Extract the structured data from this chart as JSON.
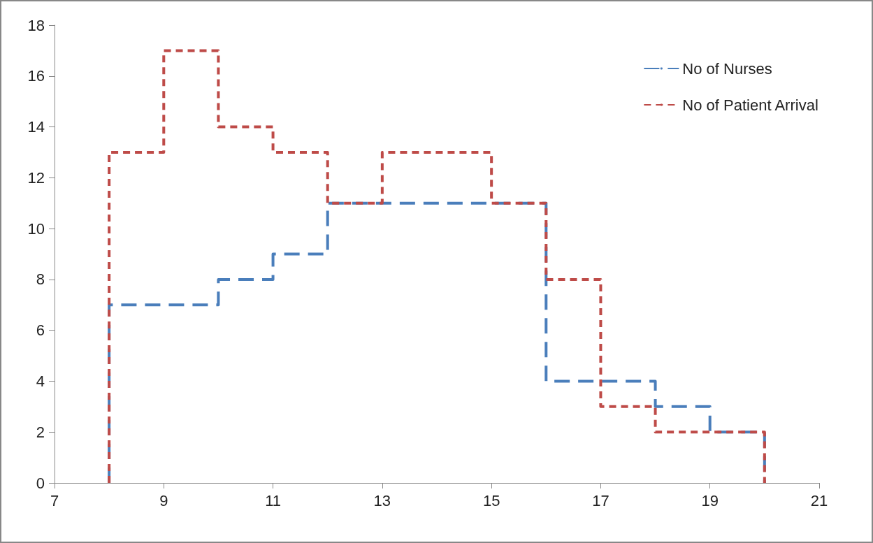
{
  "chart_data": {
    "type": "step",
    "xlim": [
      7,
      21
    ],
    "xticks": [
      7,
      9,
      11,
      13,
      15,
      17,
      19,
      21
    ],
    "ylim": [
      0,
      18
    ],
    "yticks": [
      0,
      2,
      4,
      6,
      8,
      10,
      12,
      14,
      16,
      18
    ],
    "grid": false,
    "legend": "top right",
    "marker": "none",
    "line_style": "dashed",
    "series": [
      {
        "name": "No of Nurses",
        "color": "#4a7ebb",
        "x": [
          8,
          8,
          10,
          11,
          12,
          16,
          18,
          19,
          20
        ],
        "values": [
          0,
          7,
          8,
          9,
          11,
          4,
          3,
          2,
          0
        ]
      },
      {
        "name": "No of Patient Arrival",
        "color": "#be4b48",
        "x": [
          8,
          8,
          9,
          10,
          11,
          12,
          13,
          15,
          16,
          17,
          18,
          20
        ],
        "values": [
          0,
          13,
          17,
          14,
          13,
          11,
          13,
          11,
          8,
          3,
          2,
          0
        ]
      }
    ]
  }
}
